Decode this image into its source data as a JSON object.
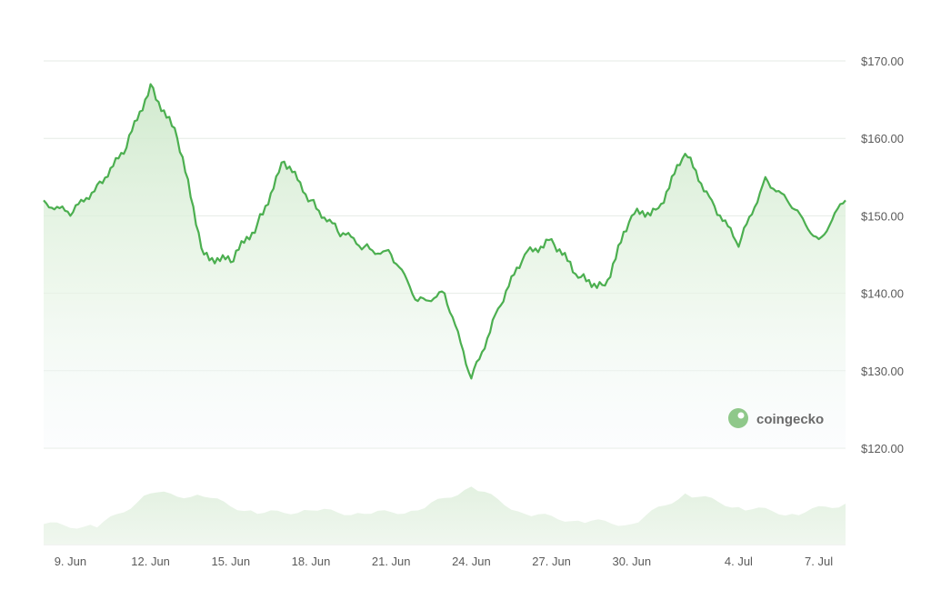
{
  "chart_data": {
    "type": "area",
    "title": "",
    "xlabel": "",
    "ylabel": "",
    "x_tick_labels": [
      "9. Jun",
      "12. Jun",
      "15. Jun",
      "18. Jun",
      "21. Jun",
      "24. Jun",
      "27. Jun",
      "30. Jun",
      "4. Jul",
      "7. Jul"
    ],
    "y_tick_labels": [
      "$170.00",
      "$160.00",
      "$150.00",
      "$140.00",
      "$130.00",
      "$120.00"
    ],
    "y_ticks": [
      170,
      160,
      150,
      140,
      130,
      120
    ],
    "ylim": [
      120,
      170
    ],
    "xlim": [
      "2024-06-08",
      "2024-07-08"
    ],
    "grid": true,
    "watermark": "coingecko",
    "colors": {
      "line": "#4CAF50",
      "area_top": "#d9efd7",
      "grid": "#e6ebe6",
      "volume": "#e8f3e6",
      "text": "#5a5a5a"
    },
    "series": [
      {
        "x": [
          "2024-06-08",
          "2024-06-09",
          "2024-06-10",
          "2024-06-11",
          "2024-06-12",
          "2024-06-13",
          "2024-06-14",
          "2024-06-15",
          "2024-06-16",
          "2024-06-17",
          "2024-06-18",
          "2024-06-19",
          "2024-06-20",
          "2024-06-21",
          "2024-06-22",
          "2024-06-23",
          "2024-06-24",
          "2024-06-25",
          "2024-06-26",
          "2024-06-27",
          "2024-06-28",
          "2024-06-29",
          "2024-06-30",
          "2024-07-01",
          "2024-07-02",
          "2024-07-03",
          "2024-07-04",
          "2024-07-05",
          "2024-07-06",
          "2024-07-07",
          "2024-07-08"
        ],
        "values": [
          152,
          150,
          154,
          158,
          167,
          160,
          145,
          144,
          149,
          157,
          152,
          148,
          146,
          145,
          139,
          140,
          129,
          138,
          145,
          147,
          142,
          141,
          150,
          151,
          158,
          152,
          146,
          155,
          151,
          147,
          152
        ]
      }
    ],
    "volume": {
      "x": [
        "2024-06-08",
        "2024-06-10",
        "2024-06-12",
        "2024-06-14",
        "2024-06-16",
        "2024-06-18",
        "2024-06-20",
        "2024-06-22",
        "2024-06-24",
        "2024-06-26",
        "2024-06-28",
        "2024-06-30",
        "2024-07-02",
        "2024-07-04",
        "2024-07-06",
        "2024-07-08"
      ],
      "values": [
        0.3,
        0.25,
        0.75,
        0.7,
        0.45,
        0.5,
        0.45,
        0.5,
        0.85,
        0.45,
        0.35,
        0.3,
        0.75,
        0.55,
        0.45,
        0.6
      ]
    }
  }
}
